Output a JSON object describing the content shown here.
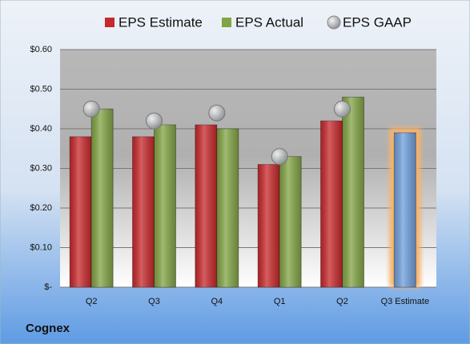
{
  "chart_data": {
    "type": "bar",
    "title": "Cognex",
    "categories": [
      "Q2",
      "Q3",
      "Q4",
      "Q1",
      "Q2",
      "Q3 Estimate"
    ],
    "series": [
      {
        "name": "EPS Estimate",
        "color": "#c8282b",
        "values": [
          0.38,
          0.38,
          0.41,
          0.31,
          0.42,
          0.39
        ]
      },
      {
        "name": "EPS Actual",
        "color": "#82a444",
        "values": [
          0.45,
          0.41,
          0.4,
          0.33,
          0.48,
          null
        ]
      },
      {
        "name": "EPS GAAP",
        "color": "#a9adb3",
        "values": [
          0.45,
          0.42,
          0.44,
          0.33,
          0.45,
          null
        ],
        "marker": "circle"
      }
    ],
    "highlight": {
      "category": 5,
      "color": "#6e9fdc",
      "glow": "#f7b36b"
    },
    "ylim": [
      0,
      0.6
    ],
    "yticks": [
      {
        "value": 0,
        "label": "$-"
      },
      {
        "value": 0.1,
        "label": "$0.10"
      },
      {
        "value": 0.2,
        "label": "$0.20"
      },
      {
        "value": 0.3,
        "label": "$0.30"
      },
      {
        "value": 0.4,
        "label": "$0.40"
      },
      {
        "value": 0.5,
        "label": "$0.50"
      },
      {
        "value": 0.6,
        "label": "$0.60"
      }
    ],
    "grid": true
  }
}
